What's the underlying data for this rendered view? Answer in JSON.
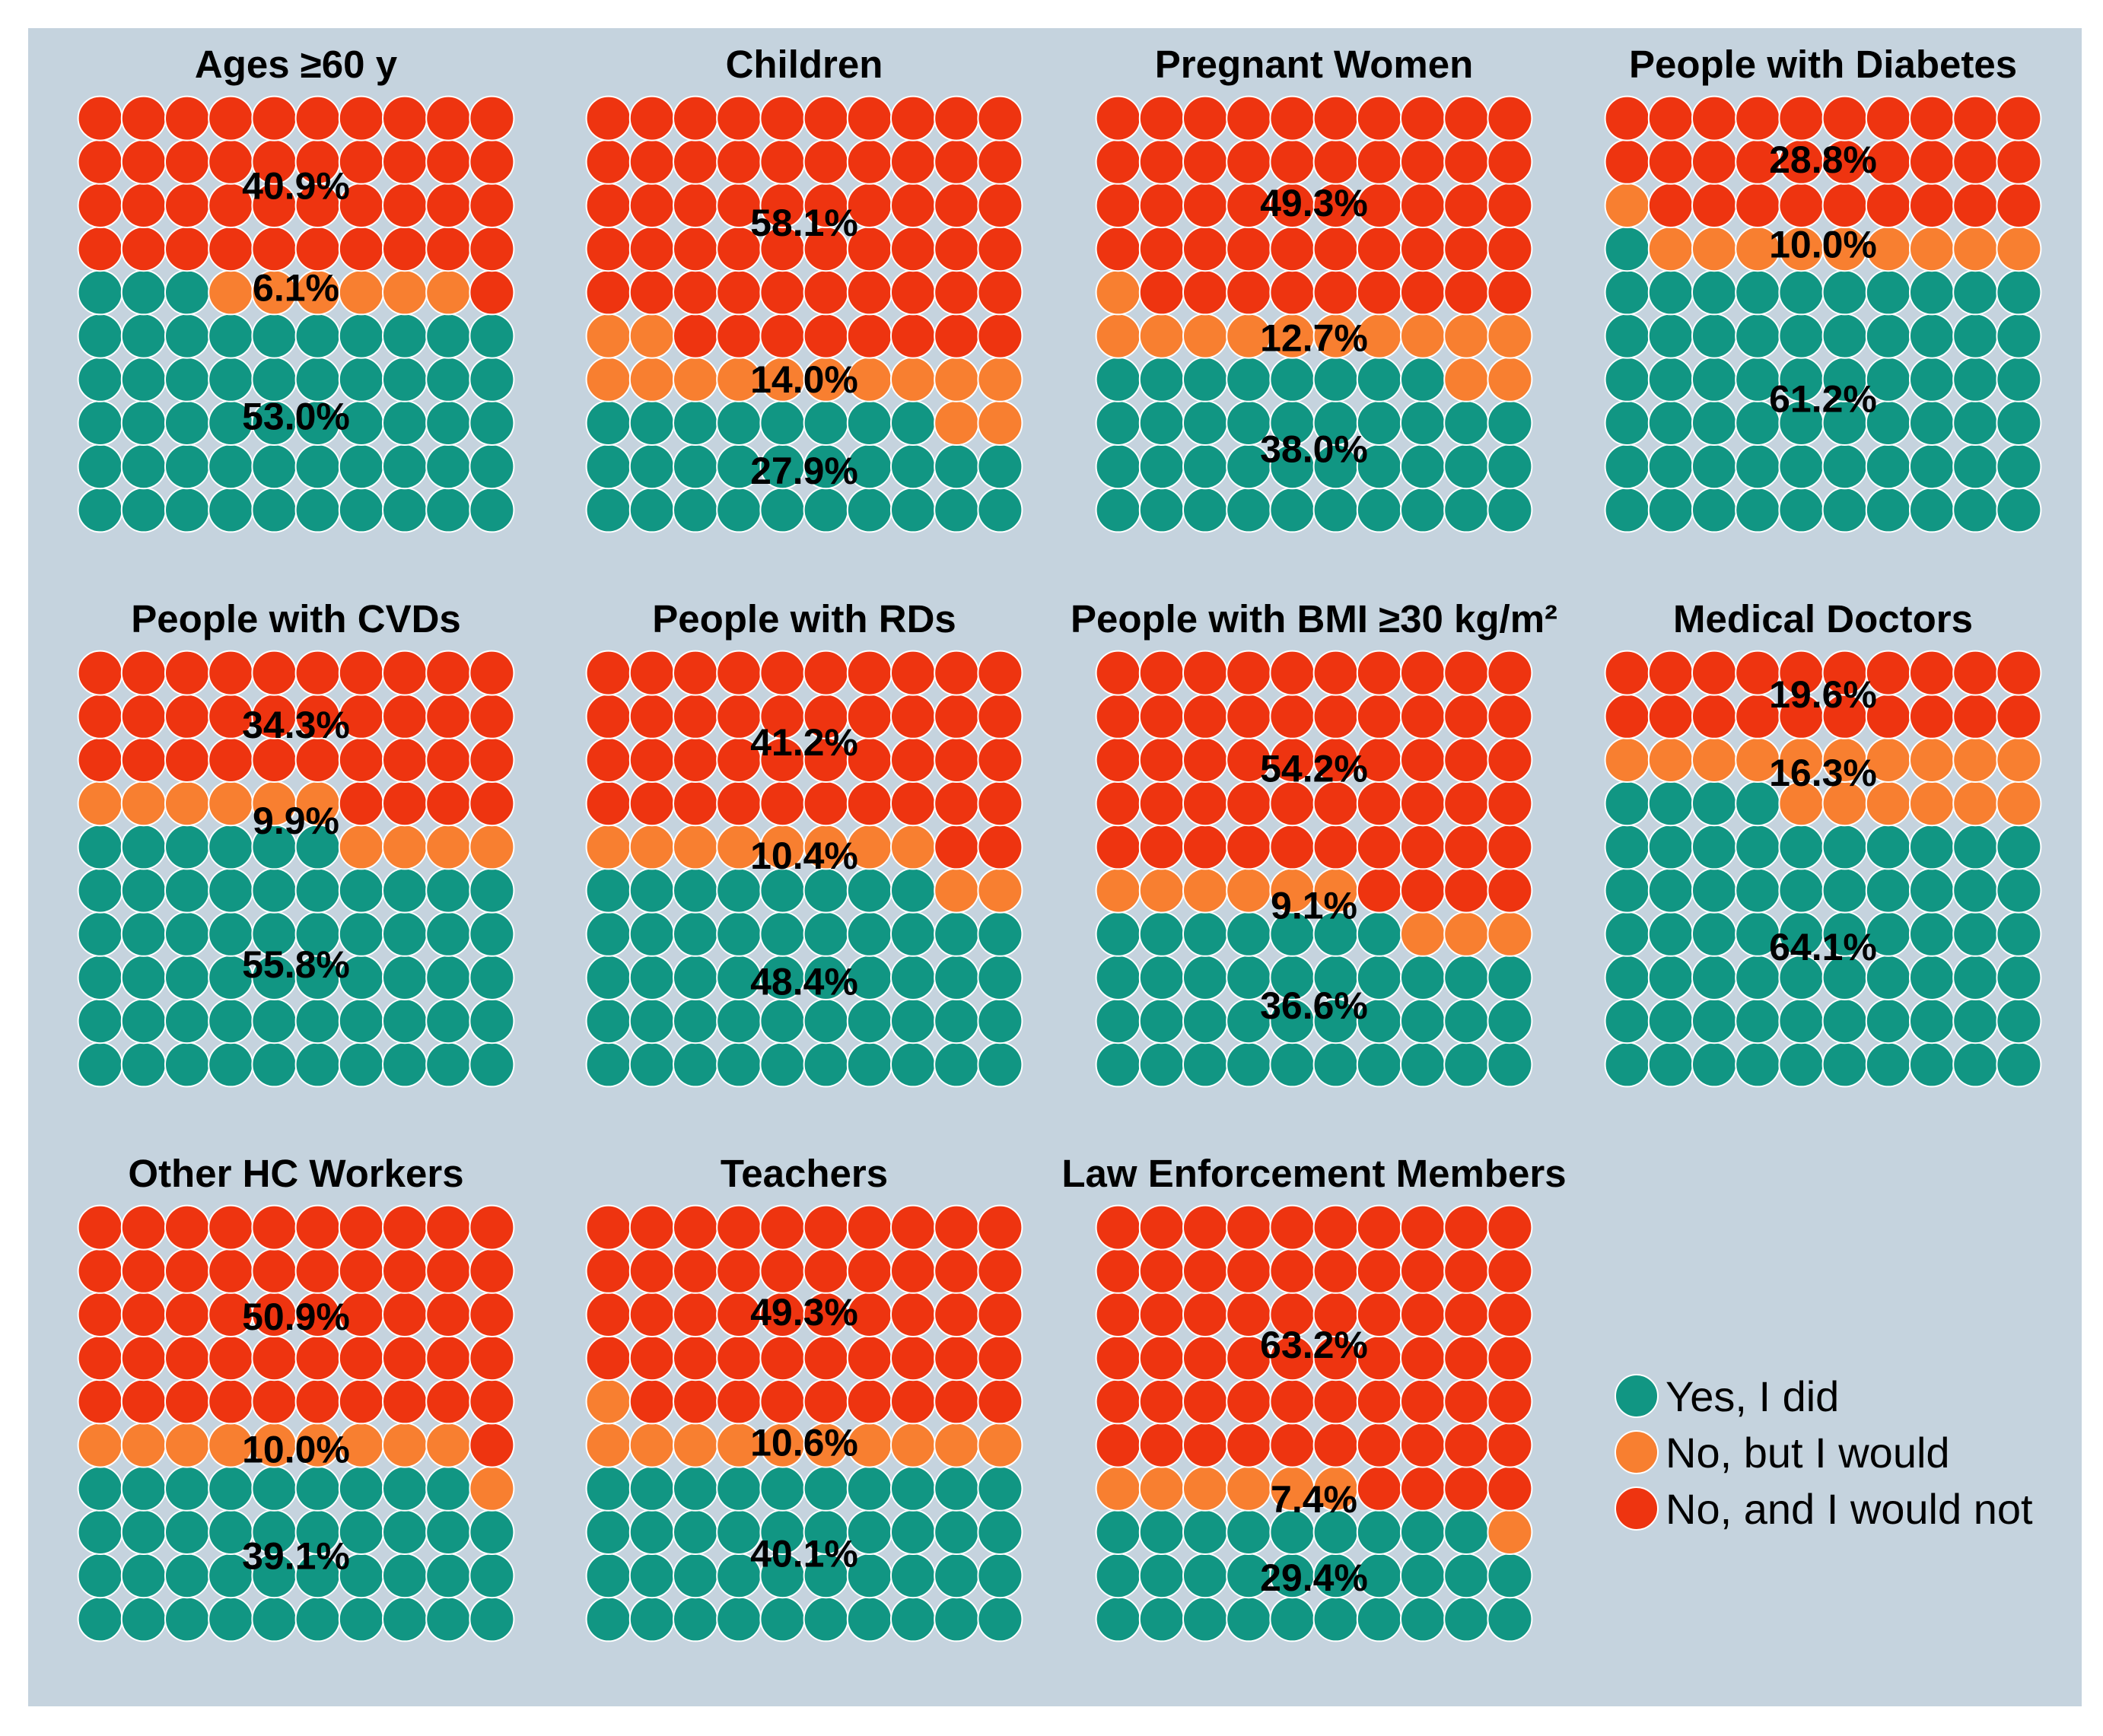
{
  "chart_data": {
    "type": "waffle",
    "grid": "10x10",
    "categories": [
      "Yes, I did",
      "No, but I would",
      "No, and I would not"
    ],
    "colors": {
      "Yes, I did": "#119683",
      "No, but I would": "#f87f30",
      "No, and I would not": "#ee3410"
    },
    "legend": {
      "items": [
        {
          "label": "Yes, I did",
          "color": "#119683"
        },
        {
          "label": "No, but I would",
          "color": "#f87f30"
        },
        {
          "label": "No, and I would not",
          "color": "#ee3410"
        }
      ],
      "placement": "bottom-right"
    },
    "panels": [
      {
        "title": "Ages ≥60 y",
        "yes": 53.0,
        "would": 6.1,
        "wouldnot": 40.9,
        "labels": {
          "yes": "53.0%",
          "would": "6.1%",
          "wouldnot": "40.9%"
        }
      },
      {
        "title": "Children",
        "yes": 27.9,
        "would": 14.0,
        "wouldnot": 58.1,
        "labels": {
          "yes": "27.9%",
          "would": "14.0%",
          "wouldnot": "58.1%"
        }
      },
      {
        "title": "Pregnant Women",
        "yes": 38.0,
        "would": 12.7,
        "wouldnot": 49.3,
        "labels": {
          "yes": "38.0%",
          "would": "12.7%",
          "wouldnot": "49.3%"
        }
      },
      {
        "title": "People with Diabetes",
        "yes": 61.2,
        "would": 10.0,
        "wouldnot": 28.8,
        "labels": {
          "yes": "61.2%",
          "would": "10.0%",
          "wouldnot": "28.8%"
        }
      },
      {
        "title": "People with CVDs",
        "yes": 55.8,
        "would": 9.9,
        "wouldnot": 34.3,
        "labels": {
          "yes": "55.8%",
          "would": "9.9%",
          "wouldnot": "34.3%"
        }
      },
      {
        "title": "People with RDs",
        "yes": 48.4,
        "would": 10.4,
        "wouldnot": 41.2,
        "labels": {
          "yes": "48.4%",
          "would": "10.4%",
          "wouldnot": "41.2%"
        }
      },
      {
        "title": "People with BMI ≥30 kg/m²",
        "yes": 36.6,
        "would": 9.1,
        "wouldnot": 54.2,
        "labels": {
          "yes": "36.6%",
          "would": "9.1%",
          "wouldnot": "54.2%"
        }
      },
      {
        "title": "Medical Doctors",
        "yes": 64.1,
        "would": 16.3,
        "wouldnot": 19.6,
        "labels": {
          "yes": "64.1%",
          "would": "16.3%",
          "wouldnot": "19.6%"
        }
      },
      {
        "title": "Other HC Workers",
        "yes": 39.1,
        "would": 10.0,
        "wouldnot": 50.9,
        "labels": {
          "yes": "39.1%",
          "would": "10.0%",
          "wouldnot": "50.9%"
        }
      },
      {
        "title": "Teachers",
        "yes": 40.1,
        "would": 10.6,
        "wouldnot": 49.3,
        "labels": {
          "yes": "40.1%",
          "would": "10.6%",
          "wouldnot": "49.3%"
        }
      },
      {
        "title": "Law Enforcement Members",
        "yes": 29.4,
        "would": 7.4,
        "wouldnot": 63.2,
        "labels": {
          "yes": "29.4%",
          "would": "7.4%",
          "wouldnot": "63.2%"
        }
      }
    ]
  }
}
